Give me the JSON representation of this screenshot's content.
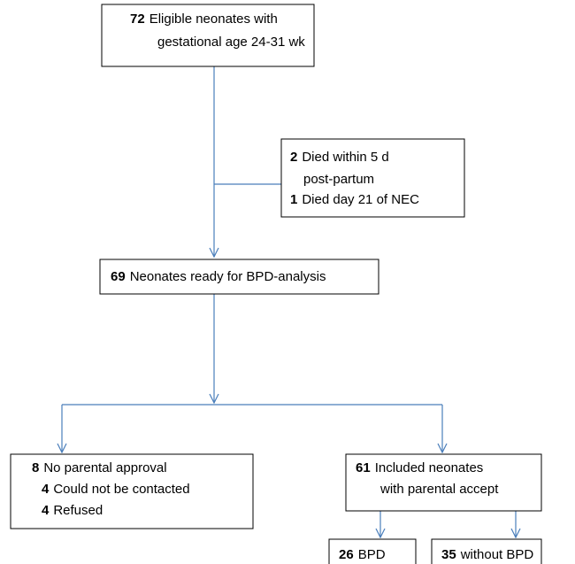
{
  "nodes": [
    {
      "lines": [
        {
          "number": 72,
          "text": "Eligible neonates with"
        },
        {
          "text": "gestational age 24-31 wk"
        }
      ]
    },
    {
      "lines": [
        {
          "number": 2,
          "text": "Died within 5 d"
        },
        {
          "text": "post-partum"
        },
        {
          "number": 1,
          "text": "Died day 21 of NEC"
        }
      ]
    },
    {
      "lines": [
        {
          "number": 69,
          "text": "Neonates ready for BPD-analysis"
        }
      ]
    },
    {
      "lines": [
        {
          "number": 8,
          "text": "No parental approval"
        },
        {
          "number": 4,
          "text": "Could not be contacted"
        },
        {
          "number": 4,
          "text": "Refused"
        }
      ]
    },
    {
      "lines": [
        {
          "number": 61,
          "text": "Included neonates"
        },
        {
          "text": "with parental accept"
        }
      ]
    },
    {
      "lines": [
        {
          "number": 26,
          "text": "BPD"
        }
      ]
    },
    {
      "lines": [
        {
          "number": 35,
          "text": "without BPD"
        }
      ]
    }
  ]
}
